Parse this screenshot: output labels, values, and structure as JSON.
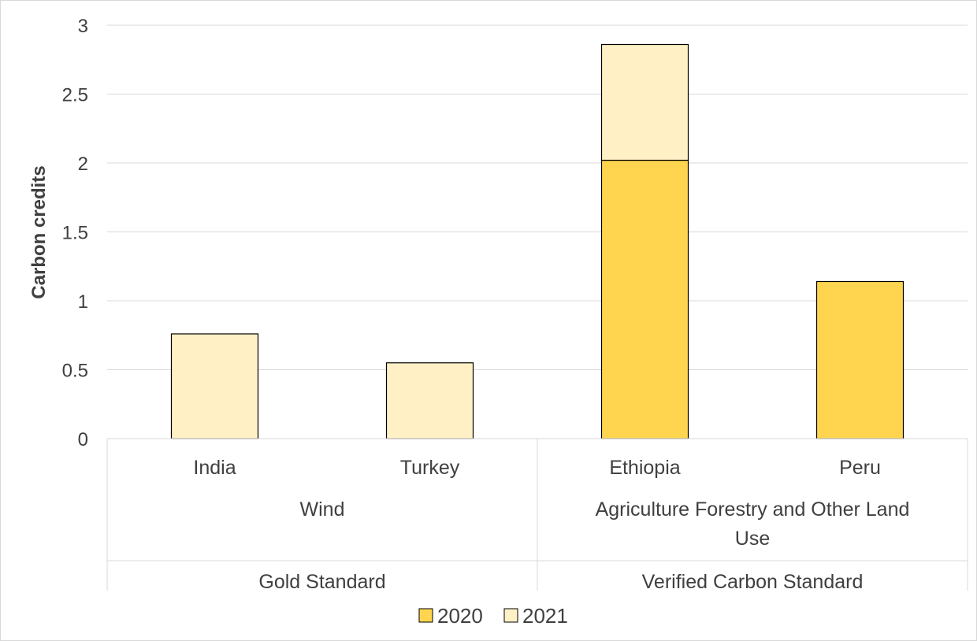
{
  "chart_data": {
    "type": "bar",
    "stacked": true,
    "categories": [
      "India",
      "Turkey",
      "Ethiopia",
      "Peru"
    ],
    "category_groups": [
      {
        "level": "sector",
        "groups": [
          {
            "label": "Wind",
            "span": [
              0,
              1
            ]
          },
          {
            "label": "Agriculture Forestry and Other Land Use",
            "span": [
              2,
              3
            ]
          }
        ]
      },
      {
        "level": "standard",
        "groups": [
          {
            "label": "Gold Standard",
            "span": [
              0,
              1
            ]
          },
          {
            "label": "Verified Carbon Standard",
            "span": [
              2,
              3
            ]
          }
        ]
      }
    ],
    "series": [
      {
        "name": "2020",
        "color": "#FFD54F",
        "values": [
          0,
          0,
          2.02,
          1.14
        ]
      },
      {
        "name": "2021",
        "color": "#FFF0C5",
        "values": [
          0.76,
          0.55,
          0.84,
          0
        ]
      }
    ],
    "xlabel": "",
    "ylabel": "Carbon credits",
    "ylim": [
      0,
      3
    ],
    "yticks": [
      "0",
      "0.5",
      "1",
      "1.5",
      "2",
      "2.5",
      "3"
    ],
    "grid": true,
    "legend_position": "bottom"
  }
}
